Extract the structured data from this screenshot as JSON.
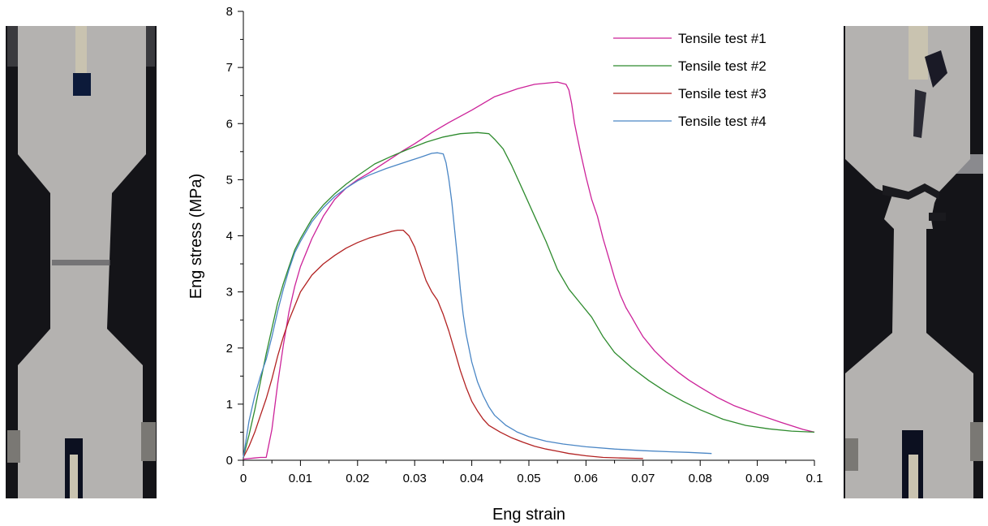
{
  "colors": {
    "background": "#ffffff",
    "axis": "#000000",
    "photo_background": "#141418",
    "specimen_surface": "#b4b2b0"
  },
  "photos": {
    "left": {
      "description_icon": "specimen-before-test-photo"
    },
    "right": {
      "description_icon": "specimen-fractured-photo"
    }
  },
  "chart_data": {
    "type": "line",
    "title": "",
    "xlabel": "Eng strain",
    "ylabel": "Eng stress (MPa)",
    "xlim": [
      0,
      0.1
    ],
    "ylim": [
      0,
      8
    ],
    "x_ticks": [
      0,
      0.01,
      0.02,
      0.03,
      0.04,
      0.05,
      0.06,
      0.07,
      0.08,
      0.09,
      0.1
    ],
    "x_tick_labels": [
      "0",
      "0.01",
      "0.02",
      "0.03",
      "0.04",
      "0.05",
      "0.06",
      "0.07",
      "0.08",
      "0.09",
      "0.1"
    ],
    "y_ticks": [
      0,
      1,
      2,
      3,
      4,
      5,
      6,
      7,
      8
    ],
    "y_tick_labels": [
      "0",
      "1",
      "2",
      "3",
      "4",
      "5",
      "6",
      "7",
      "8"
    ],
    "grid": false,
    "legend_position": "top-right",
    "series": [
      {
        "name": "Tensile test #1",
        "color": "#cc2299",
        "x": [
          0,
          0.001,
          0.002,
          0.003,
          0.004,
          0.005,
          0.006,
          0.007,
          0.008,
          0.009,
          0.01,
          0.012,
          0.014,
          0.016,
          0.018,
          0.02,
          0.022,
          0.025,
          0.028,
          0.03,
          0.033,
          0.036,
          0.04,
          0.044,
          0.048,
          0.051,
          0.053,
          0.055,
          0.0565,
          0.057,
          0.0575,
          0.058,
          0.059,
          0.06,
          0.061,
          0.062,
          0.063,
          0.064,
          0.065,
          0.066,
          0.067,
          0.068,
          0.069,
          0.07,
          0.072,
          0.074,
          0.076,
          0.078,
          0.08,
          0.083,
          0.086,
          0.09,
          0.094,
          0.098,
          0.1
        ],
        "y": [
          0.02,
          0.03,
          0.04,
          0.05,
          0.05,
          0.55,
          1.35,
          2.05,
          2.65,
          3.1,
          3.45,
          3.95,
          4.35,
          4.65,
          4.85,
          5.0,
          5.12,
          5.32,
          5.52,
          5.64,
          5.84,
          6.02,
          6.24,
          6.48,
          6.62,
          6.7,
          6.72,
          6.74,
          6.7,
          6.6,
          6.35,
          6.0,
          5.5,
          5.05,
          4.65,
          4.35,
          3.95,
          3.6,
          3.25,
          2.95,
          2.72,
          2.55,
          2.37,
          2.2,
          1.95,
          1.75,
          1.58,
          1.43,
          1.3,
          1.12,
          0.97,
          0.82,
          0.68,
          0.55,
          0.5
        ]
      },
      {
        "name": "Tensile test #2",
        "color": "#2e8b2e",
        "x": [
          0,
          0.001,
          0.002,
          0.003,
          0.004,
          0.005,
          0.006,
          0.007,
          0.008,
          0.009,
          0.01,
          0.012,
          0.014,
          0.016,
          0.018,
          0.02,
          0.023,
          0.026,
          0.029,
          0.032,
          0.035,
          0.038,
          0.041,
          0.043,
          0.044,
          0.0455,
          0.047,
          0.049,
          0.051,
          0.053,
          0.055,
          0.057,
          0.059,
          0.061,
          0.063,
          0.065,
          0.068,
          0.071,
          0.074,
          0.077,
          0.08,
          0.084,
          0.088,
          0.092,
          0.096,
          0.1
        ],
        "y": [
          0.05,
          0.45,
          0.9,
          1.4,
          1.9,
          2.35,
          2.8,
          3.15,
          3.45,
          3.75,
          3.95,
          4.3,
          4.55,
          4.75,
          4.92,
          5.07,
          5.28,
          5.42,
          5.55,
          5.67,
          5.76,
          5.82,
          5.84,
          5.82,
          5.72,
          5.55,
          5.25,
          4.8,
          4.35,
          3.9,
          3.4,
          3.05,
          2.8,
          2.55,
          2.2,
          1.92,
          1.65,
          1.42,
          1.22,
          1.05,
          0.9,
          0.73,
          0.62,
          0.56,
          0.52,
          0.5
        ]
      },
      {
        "name": "Tensile test #3",
        "color": "#b22222",
        "x": [
          0,
          0.001,
          0.002,
          0.003,
          0.004,
          0.005,
          0.006,
          0.007,
          0.008,
          0.009,
          0.01,
          0.012,
          0.014,
          0.016,
          0.018,
          0.02,
          0.022,
          0.024,
          0.026,
          0.027,
          0.028,
          0.029,
          0.03,
          0.031,
          0.032,
          0.033,
          0.034,
          0.035,
          0.036,
          0.037,
          0.038,
          0.039,
          0.04,
          0.041,
          0.042,
          0.043,
          0.045,
          0.047,
          0.049,
          0.051,
          0.053,
          0.055,
          0.057,
          0.06,
          0.063,
          0.066,
          0.07
        ],
        "y": [
          0.05,
          0.25,
          0.5,
          0.8,
          1.1,
          1.45,
          1.85,
          2.2,
          2.5,
          2.75,
          3.0,
          3.3,
          3.5,
          3.65,
          3.78,
          3.88,
          3.96,
          4.02,
          4.08,
          4.1,
          4.1,
          4.0,
          3.8,
          3.5,
          3.2,
          3.0,
          2.85,
          2.6,
          2.3,
          1.95,
          1.6,
          1.3,
          1.05,
          0.88,
          0.73,
          0.62,
          0.5,
          0.4,
          0.32,
          0.25,
          0.2,
          0.16,
          0.12,
          0.08,
          0.05,
          0.04,
          0.03
        ]
      },
      {
        "name": "Tensile test #4",
        "color": "#4a86c5",
        "x": [
          0,
          0.001,
          0.002,
          0.003,
          0.004,
          0.005,
          0.006,
          0.007,
          0.008,
          0.009,
          0.01,
          0.012,
          0.014,
          0.016,
          0.018,
          0.02,
          0.022,
          0.025,
          0.028,
          0.031,
          0.033,
          0.034,
          0.035,
          0.0355,
          0.036,
          0.0365,
          0.037,
          0.0375,
          0.038,
          0.0385,
          0.039,
          0.04,
          0.041,
          0.042,
          0.043,
          0.044,
          0.046,
          0.048,
          0.05,
          0.053,
          0.056,
          0.06,
          0.065,
          0.07,
          0.075,
          0.078,
          0.082
        ],
        "y": [
          0.05,
          0.7,
          1.15,
          1.5,
          1.8,
          2.2,
          2.65,
          3.05,
          3.4,
          3.7,
          3.9,
          4.25,
          4.5,
          4.7,
          4.85,
          4.98,
          5.08,
          5.2,
          5.3,
          5.4,
          5.47,
          5.48,
          5.46,
          5.3,
          5.0,
          4.6,
          4.1,
          3.6,
          3.05,
          2.6,
          2.25,
          1.75,
          1.4,
          1.15,
          0.95,
          0.8,
          0.62,
          0.5,
          0.42,
          0.34,
          0.29,
          0.24,
          0.2,
          0.17,
          0.15,
          0.14,
          0.12
        ]
      }
    ]
  }
}
